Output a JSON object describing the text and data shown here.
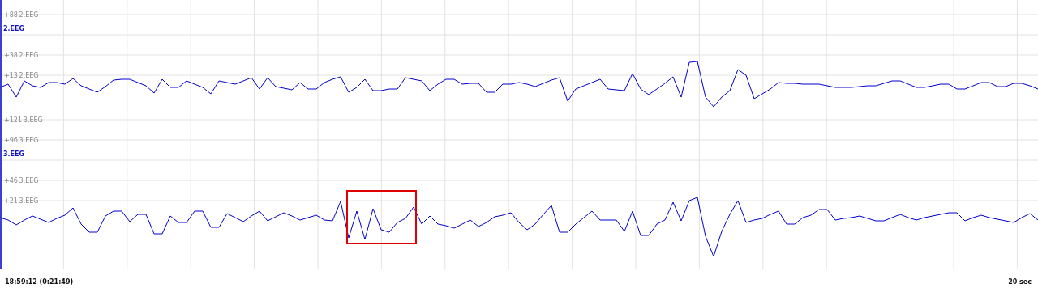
{
  "chart_data": [
    {
      "type": "line",
      "ylabel": "2.EEG",
      "ylim": [
        -34,
        106
      ],
      "grid": true,
      "tick_labels": "y",
      "marker": "none",
      "line_style": "solid",
      "categories": [
        null,
        null,
        null,
        null,
        null,
        null,
        null,
        null,
        null,
        null,
        null,
        null,
        null,
        null,
        null,
        null,
        null,
        null,
        null,
        null,
        null,
        null,
        null,
        null,
        null,
        null,
        null,
        null,
        null,
        null,
        null,
        null,
        null,
        null,
        null,
        null,
        null,
        null,
        null,
        null,
        null,
        null,
        null,
        null,
        null,
        null,
        null,
        null,
        null,
        null,
        null,
        null,
        null,
        null,
        null,
        null,
        null,
        null,
        null,
        null,
        null,
        null,
        null,
        null,
        null,
        null,
        null,
        null,
        null,
        null,
        null,
        null,
        null,
        null,
        null,
        null,
        null,
        null,
        null,
        null,
        null,
        null,
        null,
        null,
        null,
        null,
        null,
        null,
        null,
        null,
        null,
        null,
        null,
        null,
        null,
        null,
        null,
        null,
        null,
        null,
        null,
        null,
        null,
        null,
        null,
        null,
        null,
        null,
        null,
        null,
        null,
        null,
        null,
        null,
        null,
        null,
        null,
        null,
        null,
        null,
        null,
        null,
        null,
        null,
        null,
        null,
        null,
        null,
        null
      ],
      "yticks": [
        {
          "value": 88,
          "label": "+88"
        },
        {
          "value": 63,
          "label": null
        },
        {
          "value": 38,
          "label": "+38"
        },
        {
          "value": 13,
          "label": "+13"
        }
      ],
      "series": [
        {
          "color": "#0000cc",
          "values": [
            -2,
            2,
            -14,
            6,
            0,
            -2,
            4,
            4,
            2,
            9,
            0,
            -4,
            -8,
            -1,
            7,
            8,
            8,
            4,
            0,
            -9,
            8,
            -2,
            -2,
            6,
            2,
            -2,
            -10,
            6,
            4,
            2,
            6,
            10,
            -4,
            10,
            -1,
            -3,
            -5,
            4,
            -4,
            -4,
            4,
            8,
            11,
            -8,
            -2,
            8,
            -6,
            -6,
            -4,
            -4,
            10,
            8,
            6,
            -6,
            2,
            8,
            8,
            2,
            3,
            3,
            -8,
            -8,
            2,
            2,
            4,
            2,
            -1,
            3,
            7,
            10,
            -19,
            -4,
            0,
            4,
            8,
            -4,
            -5,
            -6,
            15,
            -4,
            -11,
            -4,
            3,
            11,
            -14,
            29,
            30,
            -14,
            -26,
            -14,
            -6,
            20,
            13,
            -16,
            -10,
            -4,
            4,
            3,
            3,
            2,
            2,
            2,
            0,
            -2,
            -2,
            -2,
            -1,
            0,
            0,
            3,
            6,
            6,
            2,
            -2,
            -2,
            0,
            2,
            2,
            -4,
            -4,
            0,
            4,
            4,
            -1,
            -1,
            3,
            3,
            0,
            -4
          ]
        }
      ]
    },
    {
      "type": "line",
      "ylabel": "3.EEG",
      "ylim": [
        -63,
        129
      ],
      "grid": true,
      "tick_labels": "y",
      "marker": "none",
      "line_style": "solid",
      "categories": [
        null,
        null,
        null,
        null,
        null,
        null,
        null,
        null,
        null,
        null,
        null,
        null,
        null,
        null,
        null,
        null,
        null,
        null,
        null,
        null,
        null,
        null,
        null,
        null,
        null,
        null,
        null,
        null,
        null,
        null,
        null,
        null,
        null,
        null,
        null,
        null,
        null,
        null,
        null,
        null,
        null,
        null,
        null,
        null,
        null,
        null,
        null,
        null,
        null,
        null,
        null,
        null,
        null,
        null,
        null,
        null,
        null,
        null,
        null,
        null,
        null,
        null,
        null,
        null,
        null,
        null,
        null,
        null,
        null,
        null,
        null,
        null,
        null,
        null,
        null,
        null,
        null,
        null,
        null,
        null,
        null,
        null,
        null,
        null,
        null,
        null,
        null,
        null,
        null,
        null,
        null,
        null,
        null,
        null,
        null,
        null,
        null,
        null,
        null,
        null,
        null,
        null,
        null,
        null,
        null,
        null,
        null,
        null,
        null,
        null,
        null,
        null,
        null,
        null,
        null,
        null,
        null,
        null,
        null,
        null,
        null,
        null,
        null,
        null,
        null,
        null,
        null,
        null,
        null
      ],
      "yticks": [
        {
          "value": 121,
          "label": "+121"
        },
        {
          "value": 96,
          "label": "+96"
        },
        {
          "value": 71,
          "label": null
        },
        {
          "value": 46,
          "label": "+46"
        },
        {
          "value": 21,
          "label": "+21"
        }
      ],
      "annotations": [
        "18:59:12 (0:21:49)",
        "20 sec"
      ],
      "series": [
        {
          "color": "#0000cc",
          "values": [
            0,
            -3,
            -9,
            -3,
            2,
            -2,
            -6,
            -1,
            3,
            12,
            -8,
            -18,
            -18,
            2,
            8,
            8,
            -5,
            4,
            4,
            -20,
            -20,
            2,
            -6,
            -6,
            8,
            8,
            -12,
            -12,
            5,
            0,
            -5,
            2,
            8,
            -4,
            1,
            6,
            2,
            -3,
            0,
            3,
            -3,
            -4,
            20,
            -25,
            8,
            -27,
            11,
            -15,
            -18,
            -6,
            -1,
            13,
            -8,
            2,
            -8,
            -10,
            -13,
            -8,
            -3,
            -11,
            -6,
            1,
            3,
            6,
            -6,
            -15,
            -8,
            4,
            15,
            -18,
            -18,
            -8,
            0,
            8,
            -3,
            -3,
            -3,
            -17,
            8,
            -22,
            -22,
            -8,
            -3,
            19,
            -4,
            21,
            25,
            -23,
            -48,
            -17,
            4,
            21,
            -6,
            -3,
            -1,
            4,
            8,
            -8,
            -8,
            0,
            3,
            10,
            10,
            -3,
            -1,
            0,
            2,
            -1,
            -4,
            -4,
            0,
            4,
            0,
            -3,
            0,
            2,
            4,
            6,
            6,
            -4,
            0,
            3,
            0,
            -2,
            -4,
            -6,
            0,
            5,
            -3
          ]
        }
      ]
    }
  ]
}
